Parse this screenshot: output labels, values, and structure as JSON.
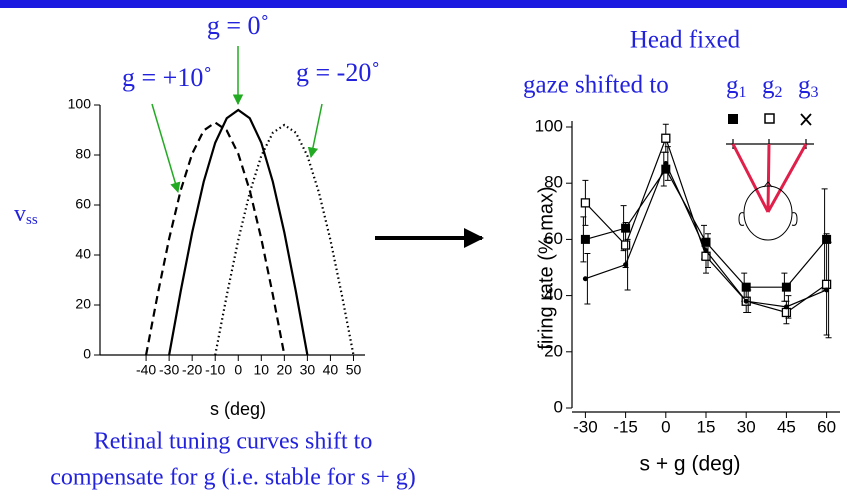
{
  "chart_data": [
    {
      "type": "line",
      "xlabel": "s (deg)",
      "ylabel": {
        "main": "v",
        "sub": "ss"
      },
      "xlim": [
        -60,
        55
      ],
      "ylim": [
        0,
        100
      ],
      "xticks": [
        -40,
        -30,
        -20,
        -10,
        0,
        10,
        20,
        30,
        40,
        50
      ],
      "yticks": [
        0,
        20,
        40,
        60,
        80,
        100
      ],
      "series": [
        {
          "name": "g = 0˚",
          "color": "#000000",
          "dash": "solid",
          "x": [
            -30,
            -25,
            -20,
            -15,
            -10,
            -5,
            0,
            5,
            10,
            15,
            20,
            25,
            30
          ],
          "values": [
            0,
            25.4,
            49,
            69.3,
            84.9,
            94.7,
            98,
            94.7,
            84.9,
            69.3,
            49,
            25.4,
            0
          ]
        },
        {
          "name": "g = +10˚",
          "color": "#000000",
          "dash": "dashed",
          "x": [
            -40,
            -35,
            -30,
            -25,
            -20,
            -15,
            -10,
            -5,
            0,
            5,
            10,
            15,
            20
          ],
          "values": [
            0,
            24.1,
            46.5,
            65.8,
            80.5,
            89.8,
            93,
            89.8,
            80.5,
            65.8,
            46.5,
            24.1,
            0
          ]
        },
        {
          "name": "g = -20˚",
          "color": "#000000",
          "dash": "dotted",
          "x": [
            -10,
            -5,
            0,
            5,
            10,
            15,
            20,
            25,
            30,
            35,
            40,
            45,
            50
          ],
          "values": [
            0,
            23.8,
            46,
            65,
            79.7,
            88.9,
            92,
            88.9,
            79.7,
            65,
            46,
            23.8,
            0
          ]
        }
      ]
    },
    {
      "type": "line",
      "title": "Head fixed",
      "subtitle": "gaze shifted to",
      "gaze_labels": [
        {
          "main": "g",
          "sub": "1"
        },
        {
          "main": "g",
          "sub": "2"
        },
        {
          "main": "g",
          "sub": "3"
        }
      ],
      "xlabel": "s + g (deg)",
      "ylabel": "firing rate (% max)",
      "x": [
        -30,
        -15,
        0,
        15,
        30,
        45,
        60
      ],
      "xlim": [
        -35,
        65
      ],
      "ylim": [
        0,
        100
      ],
      "xticks": [
        -30,
        -15,
        0,
        15,
        30,
        45,
        60
      ],
      "yticks": [
        0,
        20,
        40,
        60,
        80,
        100
      ],
      "series": [
        {
          "marker": "filled-square",
          "color": "#000000",
          "values": [
            60,
            64,
            85,
            59,
            43,
            43,
            60
          ],
          "errors": [
            8,
            8,
            6,
            6,
            5,
            5,
            18
          ]
        },
        {
          "marker": "open-square",
          "color": "#000000",
          "values": [
            73,
            58,
            96,
            54,
            38,
            34,
            44
          ],
          "errors": [
            8,
            8,
            5,
            6,
            4,
            4,
            18
          ]
        },
        {
          "marker": "small-dot",
          "color": "#000000",
          "values": [
            46,
            51,
            87,
            56,
            38,
            36,
            42
          ],
          "errors": [
            9,
            9,
            6,
            6,
            4,
            4,
            17
          ]
        }
      ]
    }
  ],
  "caption": [
    "Retinal tuning curves shift to",
    "compensate for g (i.e. stable for s + g)"
  ]
}
